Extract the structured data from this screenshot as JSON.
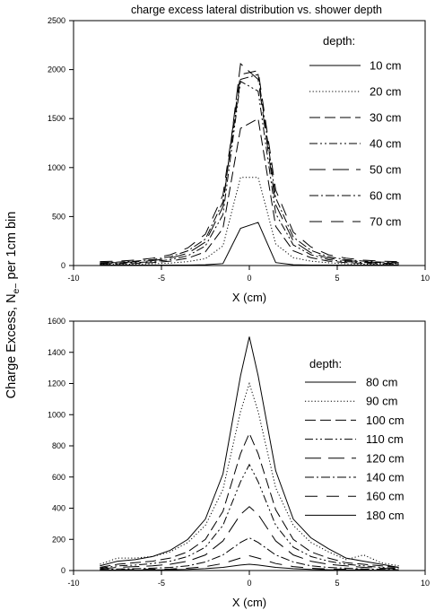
{
  "figure": {
    "shared_ylabel": "Charge Excess, N",
    "shared_ylabel_sub": "e−",
    "shared_ylabel_tail": " per 1cm bin"
  },
  "chart_data": [
    {
      "type": "line",
      "title": "charge excess lateral distribution vs. shower depth",
      "xlabel": "X (cm)",
      "xlim": [
        -10,
        10
      ],
      "ylim": [
        0,
        2500
      ],
      "xticks": [
        -10,
        -5,
        0,
        5,
        10
      ],
      "yticks": [
        0,
        500,
        1000,
        1500,
        2000,
        2500
      ],
      "legend_title": "depth:",
      "legend_position": "top-right",
      "series": [
        {
          "name": "10 cm",
          "dash": "solid",
          "x": [
            -8.5,
            -7.5,
            -6.5,
            -5.5,
            -4.5,
            -3.5,
            -2.5,
            -1.5,
            -0.5,
            0.5,
            1.5,
            2.5,
            3.5,
            4.5,
            5.5,
            6.5,
            7.5,
            8.5
          ],
          "y": [
            5,
            5,
            5,
            5,
            5,
            5,
            8,
            20,
            380,
            440,
            30,
            8,
            5,
            5,
            5,
            5,
            5,
            5
          ]
        },
        {
          "name": "20 cm",
          "dash": "dot",
          "x": [
            -8.5,
            -7.5,
            -6.5,
            -5.5,
            -4.5,
            -3.5,
            -2.5,
            -1.5,
            -0.5,
            0.5,
            1.5,
            2.5,
            3.5,
            4.5,
            5.5,
            6.5,
            7.5,
            8.5
          ],
          "y": [
            10,
            12,
            15,
            18,
            25,
            40,
            70,
            200,
            900,
            900,
            220,
            80,
            45,
            28,
            18,
            14,
            12,
            10
          ]
        },
        {
          "name": "30 cm",
          "dash": "long",
          "x": [
            -8.5,
            -7.5,
            -6.5,
            -5.5,
            -4.5,
            -3.5,
            -2.5,
            -1.5,
            -0.5,
            0.5,
            1.5,
            2.5,
            3.5,
            4.5,
            5.5,
            6.5,
            7.5,
            8.5
          ],
          "y": [
            15,
            18,
            22,
            30,
            45,
            75,
            140,
            380,
            1400,
            1500,
            400,
            150,
            80,
            45,
            30,
            22,
            18,
            15
          ]
        },
        {
          "name": "40 cm",
          "dash": "dashdotdot",
          "x": [
            -8.5,
            -7.5,
            -6.5,
            -5.5,
            -4.5,
            -3.5,
            -2.5,
            -1.5,
            -0.5,
            0.5,
            1.5,
            2.5,
            3.5,
            4.5,
            5.5,
            6.5,
            7.5,
            8.5
          ],
          "y": [
            20,
            25,
            30,
            40,
            60,
            100,
            200,
            520,
            1880,
            1780,
            530,
            210,
            110,
            60,
            40,
            30,
            25,
            20
          ]
        },
        {
          "name": "50 cm",
          "dash": "longlong",
          "x": [
            -8.5,
            -7.5,
            -6.5,
            -5.5,
            -4.5,
            -3.5,
            -2.5,
            -1.5,
            -0.5,
            0.5,
            1.5,
            2.5,
            3.5,
            4.5,
            5.5,
            6.5,
            7.5,
            8.5
          ],
          "y": [
            25,
            30,
            38,
            50,
            75,
            125,
            240,
            600,
            2060,
            1900,
            620,
            250,
            130,
            75,
            50,
            38,
            30,
            25
          ]
        },
        {
          "name": "60 cm",
          "dash": "dashdot",
          "x": [
            -8.5,
            -7.5,
            -6.5,
            -5.5,
            -4.5,
            -3.5,
            -2.5,
            -1.5,
            -0.5,
            0.5,
            1.5,
            2.5,
            3.5,
            4.5,
            5.5,
            6.5,
            7.5,
            8.5
          ],
          "y": [
            30,
            35,
            45,
            60,
            90,
            150,
            270,
            650,
            1900,
            1950,
            690,
            290,
            155,
            90,
            60,
            45,
            35,
            30
          ]
        },
        {
          "name": "70 cm",
          "dash": "longgap",
          "x": [
            -8.5,
            -7.5,
            -6.5,
            -5.5,
            -4.5,
            -3.5,
            -2.5,
            -1.5,
            -0.5,
            0.5,
            1.5,
            2.5,
            3.5,
            4.5,
            5.5,
            6.5,
            7.5,
            8.5
          ],
          "y": [
            40,
            45,
            55,
            75,
            110,
            180,
            320,
            720,
            1950,
            1990,
            770,
            340,
            190,
            110,
            75,
            55,
            45,
            40
          ]
        }
      ]
    },
    {
      "type": "line",
      "title": "",
      "xlabel": "X (cm)",
      "xlim": [
        -10,
        10
      ],
      "ylim": [
        0,
        1600
      ],
      "xticks": [
        -10,
        -5,
        0,
        5,
        10
      ],
      "yticks": [
        0,
        200,
        400,
        600,
        800,
        1000,
        1200,
        1400,
        1600
      ],
      "legend_title": "depth:",
      "legend_position": "top-right",
      "series": [
        {
          "name": "80 cm",
          "dash": "solid",
          "x": [
            -8.5,
            -7.5,
            -6.5,
            -5.5,
            -4.5,
            -3.5,
            -2.5,
            -1.5,
            -0.5,
            0,
            0.5,
            1.5,
            2.5,
            3.5,
            4.5,
            5.5,
            6.5,
            7.5,
            8.5
          ],
          "y": [
            30,
            60,
            70,
            90,
            130,
            200,
            330,
            620,
            1250,
            1500,
            1250,
            640,
            330,
            210,
            140,
            80,
            60,
            40,
            20
          ]
        },
        {
          "name": "90 cm",
          "dash": "dot",
          "x": [
            -8.5,
            -7.5,
            -6.5,
            -5.5,
            -4.5,
            -3.5,
            -2.5,
            -1.5,
            -0.5,
            0,
            0.5,
            1.5,
            2.5,
            3.5,
            4.5,
            5.5,
            6.5,
            7.5,
            8.5
          ],
          "y": [
            40,
            80,
            80,
            90,
            120,
            180,
            290,
            520,
            1020,
            1200,
            1020,
            530,
            290,
            180,
            120,
            70,
            100,
            50,
            30
          ]
        },
        {
          "name": "100 cm",
          "dash": "long",
          "x": [
            -8.5,
            -7.5,
            -6.5,
            -5.5,
            -4.5,
            -3.5,
            -2.5,
            -1.5,
            -0.5,
            0,
            0.5,
            1.5,
            2.5,
            3.5,
            4.5,
            5.5,
            6.5,
            7.5,
            8.5
          ],
          "y": [
            20,
            40,
            50,
            60,
            80,
            120,
            200,
            380,
            750,
            880,
            750,
            390,
            200,
            120,
            80,
            50,
            40,
            30,
            20
          ]
        },
        {
          "name": "110 cm",
          "dash": "dashdotdot",
          "x": [
            -8.5,
            -7.5,
            -6.5,
            -5.5,
            -4.5,
            -3.5,
            -2.5,
            -1.5,
            -0.5,
            0,
            0.5,
            1.5,
            2.5,
            3.5,
            4.5,
            5.5,
            6.5,
            7.5,
            8.5
          ],
          "y": [
            15,
            30,
            35,
            45,
            60,
            90,
            150,
            290,
            570,
            680,
            570,
            290,
            150,
            90,
            60,
            40,
            30,
            20,
            15
          ]
        },
        {
          "name": "120 cm",
          "dash": "longlong",
          "x": [
            -8.5,
            -7.5,
            -6.5,
            -5.5,
            -4.5,
            -3.5,
            -2.5,
            -1.5,
            -0.5,
            0,
            0.5,
            1.5,
            2.5,
            3.5,
            4.5,
            5.5,
            6.5,
            7.5,
            8.5
          ],
          "y": [
            10,
            20,
            25,
            30,
            40,
            60,
            100,
            190,
            360,
            410,
            360,
            190,
            100,
            60,
            40,
            30,
            20,
            15,
            10
          ]
        },
        {
          "name": "140 cm",
          "dash": "dashdot",
          "x": [
            -8.5,
            -7.5,
            -6.5,
            -5.5,
            -4.5,
            -3.5,
            -2.5,
            -1.5,
            -0.5,
            0,
            0.5,
            1.5,
            2.5,
            3.5,
            4.5,
            5.5,
            6.5,
            7.5,
            8.5
          ],
          "y": [
            5,
            10,
            12,
            15,
            20,
            30,
            55,
            100,
            180,
            210,
            180,
            100,
            55,
            30,
            20,
            15,
            10,
            8,
            5
          ]
        },
        {
          "name": "160 cm",
          "dash": "longgap",
          "x": [
            -8.5,
            -7.5,
            -6.5,
            -5.5,
            -4.5,
            -3.5,
            -2.5,
            -1.5,
            -0.5,
            0,
            0.5,
            1.5,
            2.5,
            3.5,
            4.5,
            5.5,
            6.5,
            7.5,
            8.5
          ],
          "y": [
            3,
            5,
            6,
            8,
            10,
            15,
            25,
            45,
            80,
            95,
            80,
            45,
            25,
            15,
            10,
            8,
            6,
            4,
            3
          ]
        },
        {
          "name": "180 cm",
          "dash": "solid",
          "x": [
            -8.5,
            -7.5,
            -6.5,
            -5.5,
            -4.5,
            -3.5,
            -2.5,
            -1.5,
            -0.5,
            0,
            0.5,
            1.5,
            2.5,
            3.5,
            4.5,
            5.5,
            6.5,
            7.5,
            8.5
          ],
          "y": [
            2,
            3,
            3,
            4,
            5,
            7,
            12,
            20,
            35,
            40,
            35,
            20,
            12,
            7,
            5,
            4,
            3,
            2,
            2
          ]
        }
      ]
    }
  ]
}
